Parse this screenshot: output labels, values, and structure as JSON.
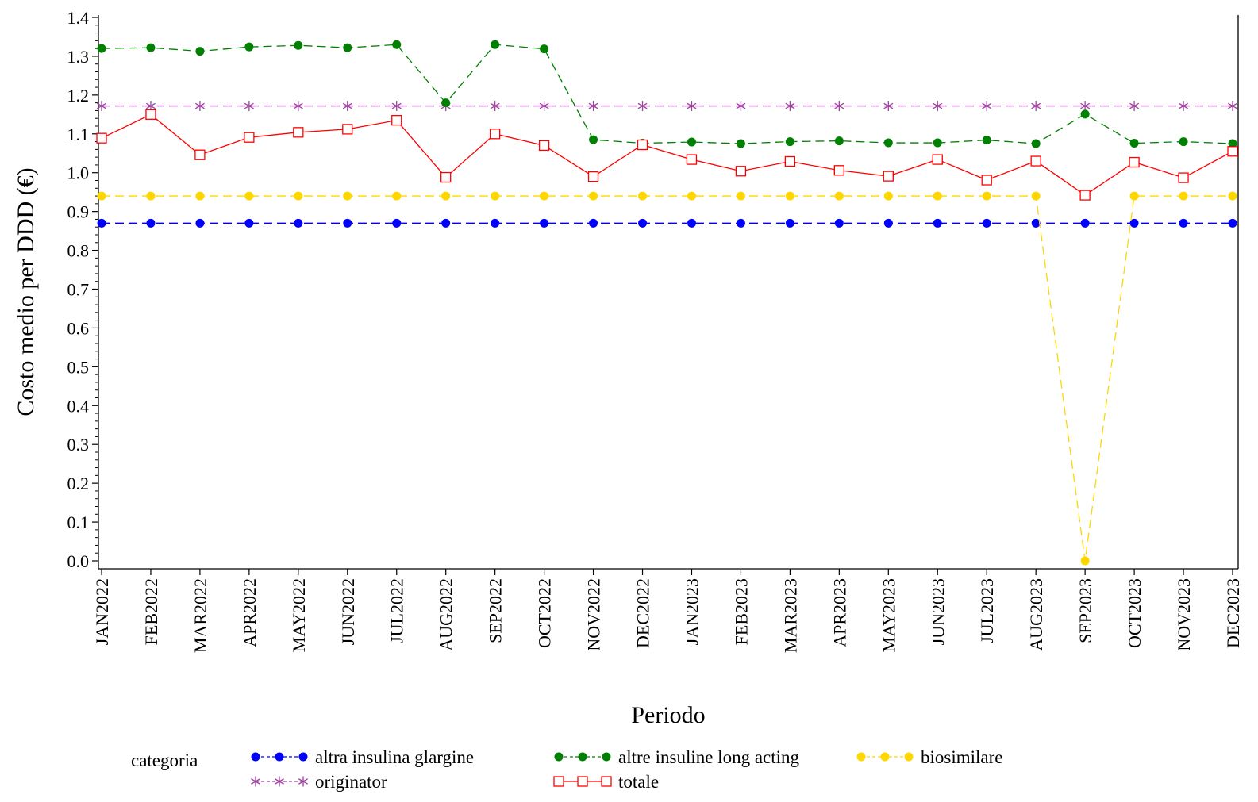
{
  "chart_data": {
    "type": "line",
    "title": "",
    "xlabel": "Periodo",
    "ylabel": "Costo medio per DDD (€)",
    "ylim": [
      0,
      1.4
    ],
    "yticks": [
      "0.0",
      "0.1",
      "0.2",
      "0.3",
      "0.4",
      "0.5",
      "0.6",
      "0.7",
      "0.8",
      "0.9",
      "1.0",
      "1.1",
      "1.2",
      "1.3",
      "1.4"
    ],
    "categories": [
      "JAN2022",
      "FEB2022",
      "MAR2022",
      "APR2022",
      "MAY2022",
      "JUN2022",
      "JUL2022",
      "AUG2022",
      "SEP2022",
      "OCT2022",
      "NOV2022",
      "DEC2022",
      "JAN2023",
      "FEB2023",
      "MAR2023",
      "APR2023",
      "MAY2023",
      "JUN2023",
      "JUL2023",
      "AUG2023",
      "SEP2023",
      "OCT2023",
      "NOV2023",
      "DEC2023"
    ],
    "legend_title": "categoria",
    "legend_position": "bottom",
    "grid": false,
    "series": [
      {
        "name": "altra insulina glargine",
        "color": "#0000ff",
        "marker": "dot",
        "line": "dashed",
        "values": [
          0.87,
          0.87,
          0.87,
          0.87,
          0.87,
          0.87,
          0.87,
          0.87,
          0.87,
          0.87,
          0.87,
          0.87,
          0.87,
          0.87,
          0.87,
          0.87,
          0.87,
          0.87,
          0.87,
          0.87,
          0.87,
          0.87,
          0.87,
          0.87
        ]
      },
      {
        "name": "altre insuline long acting",
        "color": "#008000",
        "marker": "dot",
        "line": "dashed",
        "values": [
          1.32,
          1.322,
          1.313,
          1.324,
          1.328,
          1.322,
          1.33,
          1.18,
          1.33,
          1.319,
          1.085,
          1.076,
          1.079,
          1.075,
          1.08,
          1.082,
          1.077,
          1.077,
          1.084,
          1.075,
          1.151,
          1.076,
          1.08,
          1.075
        ]
      },
      {
        "name": "biosimilare",
        "color": "#ffd700",
        "marker": "dot",
        "line": "dashed",
        "values": [
          0.94,
          0.94,
          0.94,
          0.94,
          0.94,
          0.94,
          0.94,
          0.94,
          0.94,
          0.94,
          0.94,
          0.94,
          0.94,
          0.94,
          0.94,
          0.94,
          0.94,
          0.94,
          0.94,
          0.94,
          0.0,
          0.94,
          0.94,
          0.94
        ]
      },
      {
        "name": "originator",
        "color": "#a040a0",
        "marker": "star",
        "line": "dashed",
        "values": [
          1.172,
          1.172,
          1.172,
          1.172,
          1.172,
          1.172,
          1.172,
          1.172,
          1.172,
          1.172,
          1.172,
          1.172,
          1.172,
          1.172,
          1.172,
          1.172,
          1.172,
          1.172,
          1.172,
          1.172,
          1.172,
          1.172,
          1.172,
          1.172
        ]
      },
      {
        "name": "totale",
        "color": "#ff0000",
        "marker": "square",
        "line": "solid",
        "values": [
          1.089,
          1.15,
          1.046,
          1.091,
          1.104,
          1.112,
          1.135,
          0.988,
          1.1,
          1.07,
          0.99,
          1.072,
          1.034,
          1.004,
          1.029,
          1.006,
          0.991,
          1.034,
          0.981,
          1.03,
          0.942,
          1.027,
          0.987,
          1.055
        ]
      }
    ]
  }
}
